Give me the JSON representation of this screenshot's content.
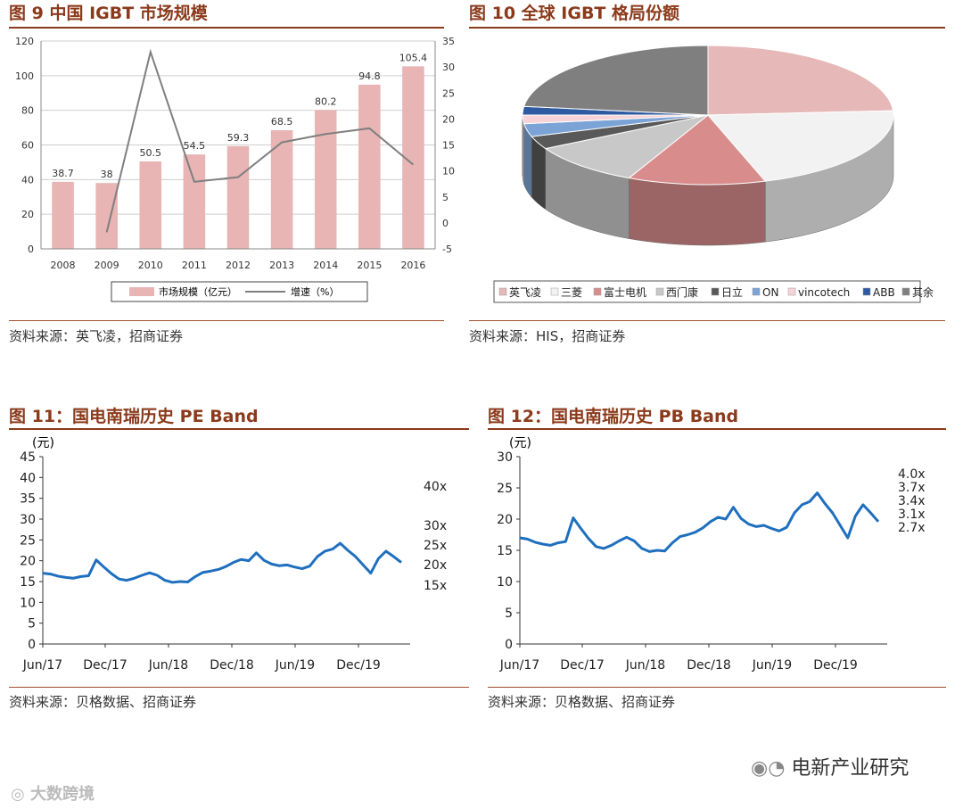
{
  "figures": {
    "fig9": {
      "title": "图 9   中国 IGBT 市场规模",
      "source": "资料来源：英飞凌，招商证券"
    },
    "fig10": {
      "title": "图 10   全球 IGBT 格局份额",
      "source": "资料来源：HIS，招商证券"
    },
    "fig11": {
      "title": "图 11：国电南瑞历史 PE Band",
      "source": "资料来源：贝格数据、招商证券"
    },
    "fig12": {
      "title": "图 12：国电南瑞历史 PB Band",
      "source": "资料来源：贝格数据、招商证券"
    }
  },
  "watermarks": {
    "wechat": "电新产业研究",
    "corner": "大数跨境"
  },
  "chart_data": [
    {
      "type": "bar",
      "categories": [
        "2008",
        "2009",
        "2010",
        "2011",
        "2012",
        "2013",
        "2014",
        "2015",
        "2016"
      ],
      "series": [
        {
          "name": "市场规模（亿元）",
          "values": [
            38.7,
            38,
            50.5,
            54.5,
            59.3,
            68.5,
            80.2,
            94.8,
            105.4
          ],
          "color": "#e8b4b4",
          "axis": "left"
        },
        {
          "name": "增速（%）",
          "type": "line",
          "values": [
            null,
            -1.8,
            32.9,
            7.9,
            8.8,
            15.5,
            17.1,
            18.2,
            11.2
          ],
          "color": "#7f7f7f",
          "axis": "right"
        }
      ],
      "data_labels": [
        "38.7",
        "38",
        "50.5",
        "54.5",
        "59.3",
        "68.5",
        "80.2",
        "94.8",
        "105.4"
      ],
      "ylim": [
        0,
        120
      ],
      "y_ticks": [
        "0",
        "20",
        "40",
        "60",
        "80",
        "100",
        "120"
      ],
      "y2lim": [
        -5,
        35
      ],
      "y2_ticks": [
        "-5",
        "0",
        "5",
        "10",
        "15",
        "20",
        "25",
        "30",
        "35"
      ],
      "grid": true,
      "legend": "bottom"
    },
    {
      "type": "pie",
      "style": "3d",
      "labels": [
        "英飞凌",
        "三菱",
        "富士电机",
        "西门康",
        "日立",
        "ON",
        "vincotech",
        "ABB",
        "其余"
      ],
      "values": [
        24,
        21,
        12,
        10,
        3,
        3,
        2,
        2,
        23
      ],
      "colors": [
        "#e6b8b7",
        "#f2f2f2",
        "#d98c8c",
        "#c8c8c8",
        "#595959",
        "#7ba3d6",
        "#f5d3d8",
        "#2d5aa0",
        "#7f7f7f"
      ],
      "legend": "bottom"
    },
    {
      "type": "line",
      "ylabel": "(元)",
      "ylim": [
        0,
        45
      ],
      "y_ticks": [
        "0",
        "5",
        "10",
        "15",
        "20",
        "25",
        "30",
        "35",
        "40",
        "45"
      ],
      "x_ticks": [
        "Jun/17",
        "Dec/17",
        "Jun/18",
        "Dec/18",
        "Jun/19",
        "Dec/19"
      ],
      "band_labels": [
        "40x",
        "30x",
        "25x",
        "20x",
        "15x"
      ],
      "series": [
        {
          "color": "#1f6fbf",
          "values": [
            17.0,
            16.8,
            16.3,
            16.0,
            15.8,
            16.2,
            16.4,
            20.2,
            18.5,
            16.9,
            15.6,
            15.3,
            15.8,
            16.5,
            17.1,
            16.5,
            15.3,
            14.8,
            15.0,
            14.9,
            16.2,
            17.2,
            17.5,
            17.9,
            18.6,
            19.6,
            20.3,
            20.0,
            21.9,
            20.1,
            19.2,
            18.8,
            19.0,
            18.5,
            18.1,
            18.7,
            21.0,
            22.3,
            22.8,
            24.2,
            22.5,
            21.0,
            19.0,
            17.0,
            20.5,
            22.3,
            21.0,
            19.6
          ]
        }
      ]
    },
    {
      "type": "line",
      "ylabel": "(元)",
      "ylim": [
        0,
        30
      ],
      "y_ticks": [
        "0",
        "5",
        "10",
        "15",
        "20",
        "25",
        "30"
      ],
      "x_ticks": [
        "Jun/17",
        "Dec/17",
        "Jun/18",
        "Dec/18",
        "Jun/19",
        "Dec/19"
      ],
      "band_labels": [
        "4.0x",
        "3.7x",
        "3.4x",
        "3.1x",
        "2.7x"
      ],
      "series": [
        {
          "color": "#1f6fbf",
          "values": [
            17.0,
            16.8,
            16.3,
            16.0,
            15.8,
            16.2,
            16.4,
            20.2,
            18.5,
            16.9,
            15.6,
            15.3,
            15.8,
            16.5,
            17.1,
            16.5,
            15.3,
            14.8,
            15.0,
            14.9,
            16.2,
            17.2,
            17.5,
            17.9,
            18.6,
            19.6,
            20.3,
            20.0,
            21.9,
            20.1,
            19.2,
            18.8,
            19.0,
            18.5,
            18.1,
            18.7,
            21.0,
            22.3,
            22.8,
            24.2,
            22.5,
            21.0,
            19.0,
            17.0,
            20.5,
            22.3,
            21.0,
            19.6
          ]
        }
      ]
    }
  ]
}
